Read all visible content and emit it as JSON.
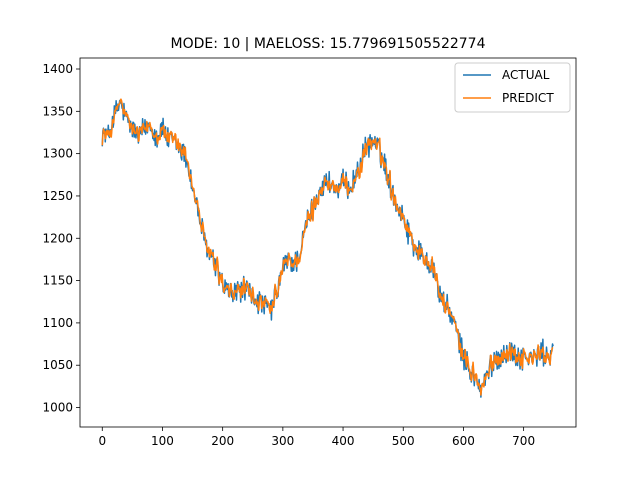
{
  "chart_data": {
    "type": "line",
    "title": "MODE: 10 | MAELOSS: 15.779691505522774",
    "xlabel": "",
    "ylabel": "",
    "xlim": [
      -37,
      787
    ],
    "ylim": [
      977,
      1413
    ],
    "x_ticks": [
      0,
      100,
      200,
      300,
      400,
      500,
      600,
      700
    ],
    "y_ticks": [
      1000,
      1050,
      1100,
      1150,
      1200,
      1250,
      1300,
      1350,
      1400
    ],
    "grid": false,
    "legend": "upper-right",
    "n_points": 750,
    "series": [
      {
        "name": "ACTUAL",
        "color": "#1f77b4",
        "anchors": [
          [
            0,
            1325
          ],
          [
            10,
            1320
          ],
          [
            20,
            1345
          ],
          [
            30,
            1360
          ],
          [
            40,
            1340
          ],
          [
            50,
            1330
          ],
          [
            60,
            1320
          ],
          [
            70,
            1330
          ],
          [
            80,
            1335
          ],
          [
            90,
            1320
          ],
          [
            100,
            1330
          ],
          [
            110,
            1315
          ],
          [
            120,
            1315
          ],
          [
            130,
            1305
          ],
          [
            140,
            1295
          ],
          [
            150,
            1260
          ],
          [
            160,
            1230
          ],
          [
            170,
            1195
          ],
          [
            180,
            1180
          ],
          [
            190,
            1165
          ],
          [
            200,
            1145
          ],
          [
            210,
            1135
          ],
          [
            220,
            1135
          ],
          [
            230,
            1140
          ],
          [
            240,
            1140
          ],
          [
            250,
            1130
          ],
          [
            260,
            1125
          ],
          [
            270,
            1120
          ],
          [
            280,
            1115
          ],
          [
            290,
            1135
          ],
          [
            300,
            1165
          ],
          [
            310,
            1175
          ],
          [
            320,
            1170
          ],
          [
            330,
            1185
          ],
          [
            340,
            1220
          ],
          [
            350,
            1235
          ],
          [
            360,
            1255
          ],
          [
            370,
            1265
          ],
          [
            380,
            1265
          ],
          [
            390,
            1255
          ],
          [
            400,
            1265
          ],
          [
            410,
            1260
          ],
          [
            420,
            1270
          ],
          [
            430,
            1290
          ],
          [
            440,
            1310
          ],
          [
            450,
            1315
          ],
          [
            460,
            1305
          ],
          [
            470,
            1285
          ],
          [
            480,
            1260
          ],
          [
            490,
            1240
          ],
          [
            500,
            1225
          ],
          [
            510,
            1205
          ],
          [
            520,
            1190
          ],
          [
            530,
            1180
          ],
          [
            540,
            1175
          ],
          [
            550,
            1165
          ],
          [
            560,
            1135
          ],
          [
            570,
            1120
          ],
          [
            580,
            1110
          ],
          [
            590,
            1085
          ],
          [
            600,
            1060
          ],
          [
            610,
            1045
          ],
          [
            620,
            1035
          ],
          [
            630,
            1020
          ],
          [
            640,
            1040
          ],
          [
            650,
            1055
          ],
          [
            660,
            1060
          ],
          [
            670,
            1065
          ],
          [
            680,
            1065
          ],
          [
            690,
            1060
          ],
          [
            700,
            1060
          ],
          [
            710,
            1058
          ],
          [
            720,
            1060
          ],
          [
            730,
            1065
          ],
          [
            740,
            1060
          ],
          [
            750,
            1067
          ]
        ],
        "noise_amplitude": 12
      },
      {
        "name": "PREDICT",
        "color": "#ff7f0e",
        "anchors": [
          [
            0,
            1325
          ],
          [
            10,
            1320
          ],
          [
            20,
            1345
          ],
          [
            30,
            1360
          ],
          [
            40,
            1340
          ],
          [
            50,
            1330
          ],
          [
            60,
            1320
          ],
          [
            70,
            1330
          ],
          [
            80,
            1335
          ],
          [
            90,
            1320
          ],
          [
            100,
            1330
          ],
          [
            110,
            1315
          ],
          [
            120,
            1315
          ],
          [
            130,
            1305
          ],
          [
            140,
            1295
          ],
          [
            150,
            1260
          ],
          [
            160,
            1230
          ],
          [
            170,
            1195
          ],
          [
            180,
            1180
          ],
          [
            190,
            1165
          ],
          [
            200,
            1145
          ],
          [
            210,
            1135
          ],
          [
            220,
            1135
          ],
          [
            230,
            1140
          ],
          [
            240,
            1140
          ],
          [
            250,
            1130
          ],
          [
            260,
            1125
          ],
          [
            270,
            1120
          ],
          [
            280,
            1115
          ],
          [
            290,
            1135
          ],
          [
            300,
            1165
          ],
          [
            310,
            1175
          ],
          [
            320,
            1170
          ],
          [
            330,
            1185
          ],
          [
            340,
            1220
          ],
          [
            350,
            1235
          ],
          [
            360,
            1255
          ],
          [
            370,
            1265
          ],
          [
            380,
            1265
          ],
          [
            390,
            1255
          ],
          [
            400,
            1265
          ],
          [
            410,
            1260
          ],
          [
            420,
            1270
          ],
          [
            430,
            1290
          ],
          [
            440,
            1310
          ],
          [
            450,
            1315
          ],
          [
            460,
            1305
          ],
          [
            470,
            1285
          ],
          [
            480,
            1260
          ],
          [
            490,
            1240
          ],
          [
            500,
            1225
          ],
          [
            510,
            1205
          ],
          [
            520,
            1190
          ],
          [
            530,
            1180
          ],
          [
            540,
            1175
          ],
          [
            550,
            1165
          ],
          [
            560,
            1135
          ],
          [
            570,
            1120
          ],
          [
            580,
            1110
          ],
          [
            590,
            1085
          ],
          [
            600,
            1060
          ],
          [
            610,
            1045
          ],
          [
            620,
            1035
          ],
          [
            630,
            1020
          ],
          [
            640,
            1040
          ],
          [
            650,
            1055
          ],
          [
            660,
            1060
          ],
          [
            670,
            1065
          ],
          [
            680,
            1065
          ],
          [
            690,
            1060
          ],
          [
            700,
            1060
          ],
          [
            710,
            1058
          ],
          [
            720,
            1060
          ],
          [
            730,
            1065
          ],
          [
            740,
            1060
          ],
          [
            750,
            1067
          ]
        ],
        "noise_amplitude": 12
      }
    ]
  }
}
